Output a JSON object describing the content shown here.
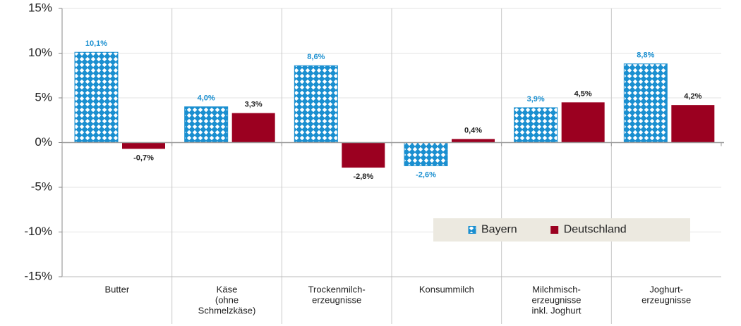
{
  "chart_data": {
    "type": "bar",
    "categories": [
      [
        "Butter"
      ],
      [
        "Käse",
        "(ohne",
        "Schmelzkäse)"
      ],
      [
        "Trockenmilch-",
        "erzeugnisse"
      ],
      [
        "Konsummilch"
      ],
      [
        "Milchmisch-",
        "erzeugnisse",
        "inkl. Joghurt"
      ],
      [
        "Joghurt-",
        "erzeugnisse"
      ]
    ],
    "series": [
      {
        "name": "Bayern",
        "color": "#1a8fd0",
        "pattern": "diamonds",
        "values": [
          10.1,
          4.0,
          8.6,
          -2.6,
          3.9,
          8.8
        ],
        "value_labels": [
          "10,1%",
          "4,0%",
          "8,6%",
          "-2,6%",
          "3,9%",
          "8,8%"
        ]
      },
      {
        "name": "Deutschland",
        "color": "#9b0020",
        "values": [
          -0.7,
          3.3,
          -2.8,
          0.4,
          4.5,
          4.2
        ],
        "value_labels": [
          "-0,7%",
          "3,3%",
          "-2,8%",
          "0,4%",
          "4,5%",
          "4,2%"
        ]
      }
    ],
    "ylim": [
      -15,
      15
    ],
    "yticks": [
      {
        "value": -15,
        "label": "-15%"
      },
      {
        "value": -10,
        "label": "-10%"
      },
      {
        "value": -5,
        "label": "-5%"
      },
      {
        "value": 0,
        "label": "0%"
      },
      {
        "value": 5,
        "label": "5%"
      },
      {
        "value": 10,
        "label": "10%"
      },
      {
        "value": 15,
        "label": "15%"
      }
    ],
    "grid": true,
    "legend": "lower right"
  }
}
